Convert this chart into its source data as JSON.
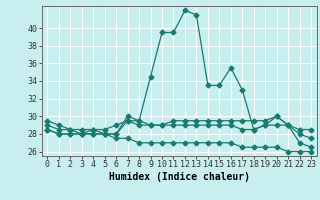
{
  "x": [
    0,
    1,
    2,
    3,
    4,
    5,
    6,
    7,
    8,
    9,
    10,
    11,
    12,
    13,
    14,
    15,
    16,
    17,
    18,
    19,
    20,
    21,
    22,
    23
  ],
  "line_main": [
    29.0,
    28.5,
    28.5,
    28.0,
    28.0,
    28.0,
    28.0,
    30.0,
    29.5,
    34.5,
    39.5,
    39.5,
    42.0,
    41.5,
    33.5,
    33.5,
    35.5,
    33.0,
    28.5,
    29.0,
    30.0,
    29.0,
    27.0,
    26.5
  ],
  "line_mid1": [
    29.5,
    29.0,
    28.5,
    28.5,
    28.5,
    28.5,
    29.0,
    29.5,
    29.5,
    29.0,
    29.0,
    29.5,
    29.5,
    29.5,
    29.5,
    29.5,
    29.5,
    29.5,
    29.5,
    29.5,
    30.0,
    29.0,
    28.5,
    28.5
  ],
  "line_mid2": [
    28.5,
    28.0,
    28.0,
    28.0,
    28.5,
    28.0,
    28.0,
    29.5,
    29.0,
    29.0,
    29.0,
    29.0,
    29.0,
    29.0,
    29.0,
    29.0,
    29.0,
    28.5,
    28.5,
    29.0,
    29.0,
    29.0,
    28.0,
    27.5
  ],
  "line_bot": [
    28.5,
    28.0,
    28.0,
    28.0,
    28.0,
    28.0,
    27.5,
    27.5,
    27.0,
    27.0,
    27.0,
    27.0,
    27.0,
    27.0,
    27.0,
    27.0,
    27.0,
    26.5,
    26.5,
    26.5,
    26.5,
    26.0,
    26.0,
    26.0
  ],
  "color": "#1a7a6e",
  "bg_color": "#c8eef0",
  "grid_color": "#ffffff",
  "xlabel": "Humidex (Indice chaleur)",
  "ylim": [
    25.5,
    42.5
  ],
  "xlim": [
    -0.5,
    23.5
  ],
  "yticks": [
    26,
    28,
    30,
    32,
    34,
    36,
    38,
    40
  ],
  "xticks": [
    0,
    1,
    2,
    3,
    4,
    5,
    6,
    7,
    8,
    9,
    10,
    11,
    12,
    13,
    14,
    15,
    16,
    17,
    18,
    19,
    20,
    21,
    22,
    23
  ],
  "xlabel_fontsize": 7,
  "tick_fontsize": 6,
  "marker_size": 2.5,
  "line_width": 0.9
}
